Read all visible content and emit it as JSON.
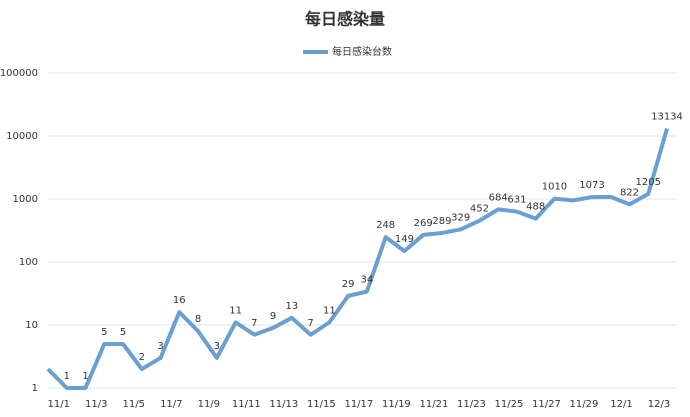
{
  "chart_data": {
    "type": "line",
    "title": "每日感染量",
    "categories": [
      null,
      "11/1",
      null,
      "11/3",
      null,
      "11/5",
      null,
      "11/7",
      null,
      "11/9",
      null,
      "11/11",
      null,
      "11/13",
      null,
      "11/15",
      null,
      "11/17",
      null,
      "11/19",
      null,
      "11/21",
      null,
      "11/23",
      null,
      "11/25",
      null,
      "11/27",
      null,
      "11/29",
      null,
      "12/1",
      null,
      "12/3"
    ],
    "series": [
      {
        "name": "每日感染台数",
        "color": "#6a9fd2",
        "values": [
          2,
          1,
          1,
          5,
          5,
          2,
          3,
          16,
          8,
          3,
          11,
          7,
          9,
          13,
          7,
          11,
          29,
          34,
          248,
          149,
          269,
          289,
          329,
          452,
          684,
          631,
          488,
          1010,
          950,
          1073,
          1080,
          822,
          1205,
          13134
        ],
        "value_labels": [
          null,
          1,
          1,
          5,
          5,
          2,
          3,
          16,
          8,
          3,
          11,
          7,
          9,
          13,
          7,
          11,
          29,
          34,
          248,
          149,
          269,
          289,
          329,
          452,
          684,
          631,
          488,
          1010,
          null,
          1073,
          null,
          822,
          1205,
          13134
        ]
      }
    ],
    "ylim": [
      1,
      100000
    ],
    "yticks": [
      1,
      10,
      100,
      1000,
      10000,
      100000
    ],
    "log_scale": true,
    "grid": true
  }
}
